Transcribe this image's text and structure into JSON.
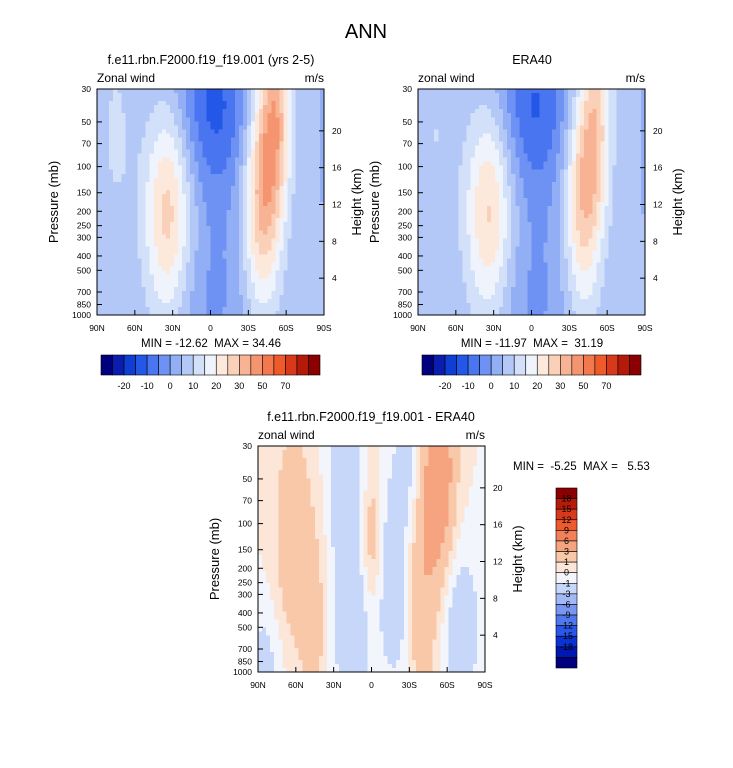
{
  "figure": {
    "title": "ANN"
  },
  "chart_data": [
    {
      "type": "heatmap",
      "title": "f.e11.rbn.F2000.f19_f19.001 (yrs 2-5)",
      "left_label": "Zonal wind",
      "right_label": "m/s",
      "ylabel": "Pressure (mb)",
      "ylabel_right": "Height (km)",
      "xlabel": "",
      "x_ticks": [
        "90N",
        "60N",
        "30N",
        "0",
        "30S",
        "60S",
        "90S"
      ],
      "y_ticks": [
        "30",
        "50",
        "70",
        "100",
        "150",
        "200",
        "250",
        "300",
        "400",
        "500",
        "700",
        "850",
        "1000"
      ],
      "y2_ticks": [
        "20",
        "16",
        "12",
        "8",
        "4"
      ],
      "xlim": [
        90,
        -90
      ],
      "ylim": [
        1000,
        30
      ],
      "stats": "MIN = -12.62  MAX = 34.46",
      "min": -12.62,
      "max": 34.46,
      "colorbar_labels": [
        "-20",
        "-10",
        "0",
        "10",
        "20",
        "30",
        "50",
        "70"
      ],
      "features": [
        {
          "lat": 33,
          "p": 200,
          "amp": 24,
          "slat": 14,
          "slogp": 0.55
        },
        {
          "lat": -40,
          "p": 200,
          "amp": 22,
          "slat": 11,
          "slogp": 0.55
        },
        {
          "lat": -52,
          "p": 35,
          "amp": 22,
          "slat": 9,
          "slogp": 0.5
        },
        {
          "lat": -45,
          "p": 90,
          "amp": 8,
          "slat": 10,
          "slogp": 0.4
        },
        {
          "lat": -5,
          "p": 40,
          "amp": -12,
          "slat": 22,
          "slogp": 0.45
        },
        {
          "lat": 8,
          "p": 35,
          "amp": -5,
          "slat": 25,
          "slogp": 0.4
        },
        {
          "lat": 10,
          "p": 700,
          "amp": -6,
          "slat": 20,
          "slogp": 0.5
        },
        {
          "lat": -25,
          "p": 800,
          "amp": -3,
          "slat": 15,
          "slogp": 0.5
        },
        {
          "lat": 75,
          "p": 60,
          "amp": 6,
          "slat": 10,
          "slogp": 0.5
        }
      ]
    },
    {
      "type": "heatmap",
      "title": "ERA40",
      "left_label": "zonal wind",
      "right_label": "m/s",
      "ylabel": "Pressure (mb)",
      "ylabel_right": "Height (km)",
      "xlabel": "",
      "x_ticks": [
        "90N",
        "60N",
        "30N",
        "0",
        "30S",
        "60S",
        "90S"
      ],
      "y_ticks": [
        "30",
        "50",
        "70",
        "100",
        "150",
        "200",
        "250",
        "300",
        "400",
        "500",
        "700",
        "850",
        "1000"
      ],
      "y2_ticks": [
        "20",
        "16",
        "12",
        "8",
        "4"
      ],
      "xlim": [
        90,
        -90
      ],
      "ylim": [
        1000,
        30
      ],
      "stats": "MIN = -11.97  MAX =  31.19",
      "min": -11.97,
      "max": 31.19,
      "colorbar_labels": [
        "-20",
        "-10",
        "0",
        "10",
        "20",
        "30",
        "50",
        "70"
      ],
      "features": [
        {
          "lat": 33,
          "p": 200,
          "amp": 23,
          "slat": 14,
          "slogp": 0.55
        },
        {
          "lat": -40,
          "p": 200,
          "amp": 20,
          "slat": 11,
          "slogp": 0.55
        },
        {
          "lat": -52,
          "p": 35,
          "amp": 16,
          "slat": 9,
          "slogp": 0.5
        },
        {
          "lat": -45,
          "p": 90,
          "amp": 8,
          "slat": 10,
          "slogp": 0.4
        },
        {
          "lat": -5,
          "p": 40,
          "amp": -11,
          "slat": 22,
          "slogp": 0.45
        },
        {
          "lat": 8,
          "p": 35,
          "amp": -5,
          "slat": 25,
          "slogp": 0.4
        },
        {
          "lat": 10,
          "p": 700,
          "amp": -6,
          "slat": 20,
          "slogp": 0.5
        },
        {
          "lat": -25,
          "p": 800,
          "amp": -3,
          "slat": 15,
          "slogp": 0.5
        },
        {
          "lat": 75,
          "p": 60,
          "amp": 5,
          "slat": 10,
          "slogp": 0.5
        }
      ]
    },
    {
      "type": "heatmap",
      "title": "f.e11.rbn.F2000.f19_f19.001 - ERA40",
      "left_label": "zonal wind",
      "right_label": "m/s",
      "ylabel": "Pressure (mb)",
      "ylabel_right": "Height (km)",
      "xlabel": "",
      "x_ticks": [
        "90N",
        "60N",
        "30N",
        "0",
        "30S",
        "60S",
        "90S"
      ],
      "y_ticks": [
        "30",
        "50",
        "70",
        "100",
        "150",
        "200",
        "250",
        "300",
        "400",
        "500",
        "700",
        "850",
        "1000"
      ],
      "y2_ticks": [
        "20",
        "16",
        "12",
        "8",
        "4"
      ],
      "xlim": [
        90,
        -90
      ],
      "ylim": [
        1000,
        30
      ],
      "stats": "MIN =  -5.25  MAX =   5.53",
      "min": -5.25,
      "max": 5.53,
      "colorbar_labels": [
        "18",
        "15",
        "12",
        "9",
        "6",
        "3",
        "1",
        "0",
        "-1",
        "-3",
        "-6",
        "-9",
        "-12",
        "-15",
        "-18"
      ],
      "features": [
        {
          "lat": -53,
          "p": 45,
          "amp": 5.5,
          "slat": 9,
          "slogp": 0.45
        },
        {
          "lat": -40,
          "p": 300,
          "amp": 2.5,
          "slat": 10,
          "slogp": 0.5
        },
        {
          "lat": 62,
          "p": 120,
          "amp": 2.5,
          "slat": 10,
          "slogp": 0.5
        },
        {
          "lat": 45,
          "p": 500,
          "amp": 1.5,
          "slat": 8,
          "slogp": 0.5
        },
        {
          "lat": 0,
          "p": 120,
          "amp": 2,
          "slat": 5,
          "slogp": 0.35
        },
        {
          "lat": 20,
          "p": 60,
          "amp": -2.5,
          "slat": 10,
          "slogp": 0.4
        },
        {
          "lat": -20,
          "p": 250,
          "amp": -2.5,
          "slat": 9,
          "slogp": 0.45
        },
        {
          "lat": 15,
          "p": 600,
          "amp": -2,
          "slat": 12,
          "slogp": 0.4
        },
        {
          "lat": -70,
          "p": 500,
          "amp": -2,
          "slat": 12,
          "slogp": 0.4
        },
        {
          "lat": 85,
          "p": 900,
          "amp": -1.5,
          "slat": 10,
          "slogp": 0.3
        },
        {
          "lat": -30,
          "p": 40,
          "amp": -1.5,
          "slat": 10,
          "slogp": 0.3
        }
      ]
    }
  ],
  "colors": {
    "twenty": [
      "#00007f",
      "#0b1cb0",
      "#0f3ed2",
      "#2357e8",
      "#4a75f0",
      "#6d92f3",
      "#92aff5",
      "#b4c8f7",
      "#d3e0f9",
      "#eef3fc",
      "#fde9dc",
      "#fbd0b8",
      "#f8b394",
      "#f5956f",
      "#f3784e",
      "#ef5a2b",
      "#d9391b",
      "#b51a08",
      "#8b0000"
    ],
    "diff": [
      "#00007f",
      "#0018b0",
      "#0a33d4",
      "#2a56ea",
      "#5078ee",
      "#7896f2",
      "#a3b9f5",
      "#c7d7f9",
      "#f2f5fc",
      "#fce6d8",
      "#f8c8a8",
      "#f5a47f",
      "#f28058",
      "#ed5a2e",
      "#d9391b",
      "#b81a0a",
      "#8b0000"
    ]
  }
}
